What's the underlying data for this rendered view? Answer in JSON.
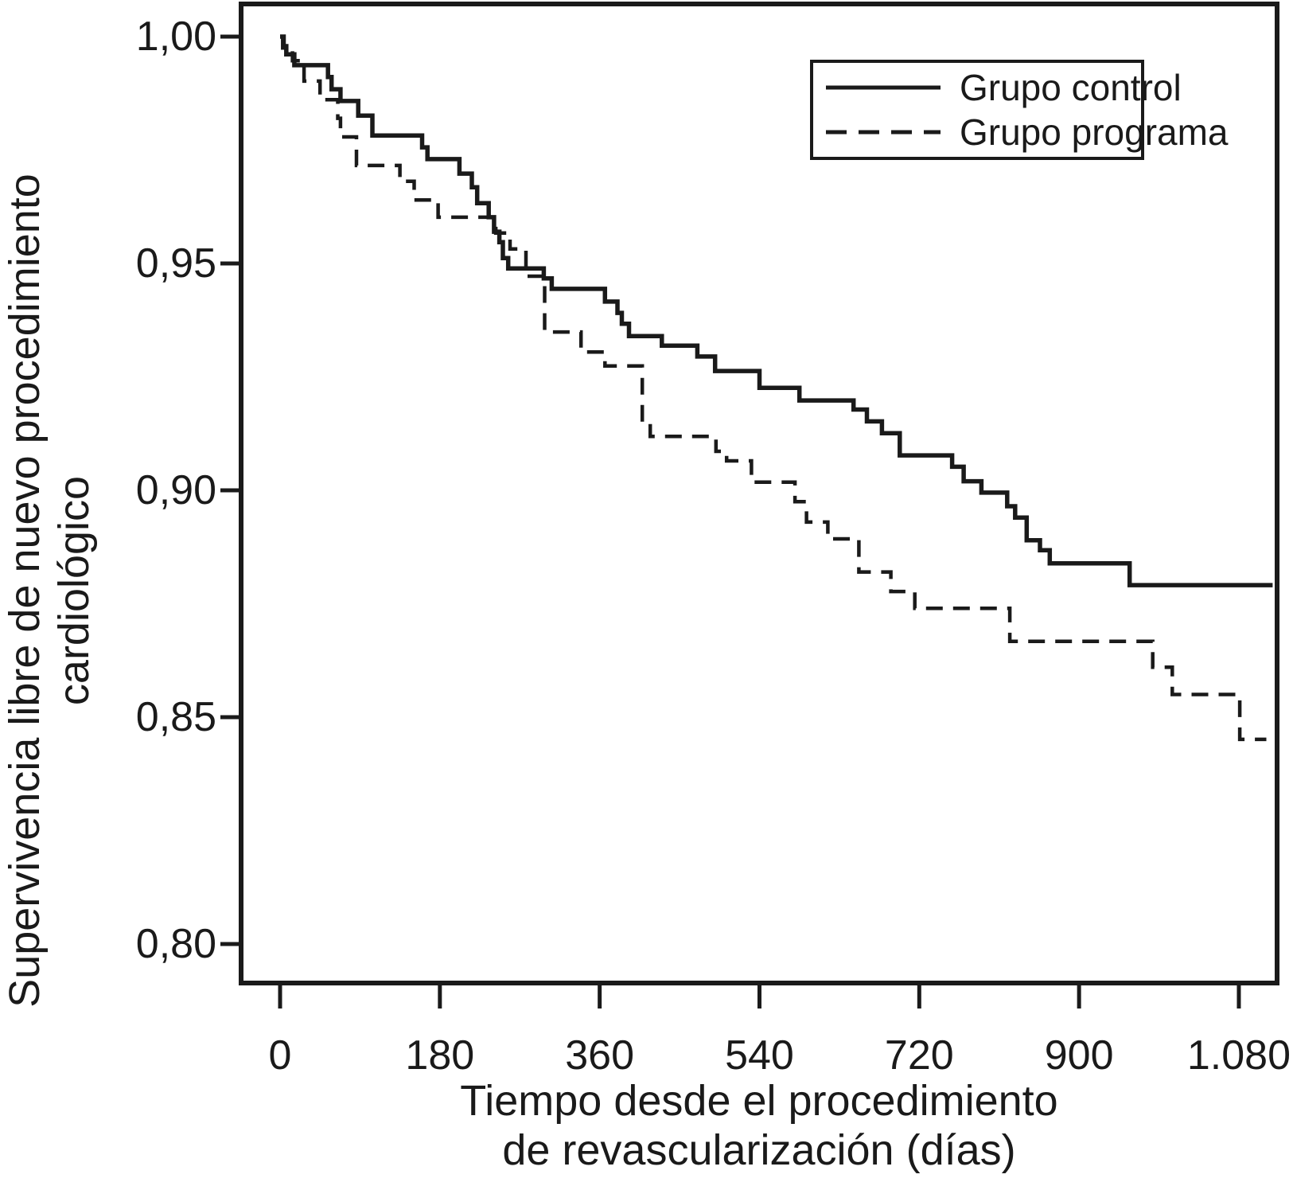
{
  "figure": {
    "background_color": "#ffffff",
    "line_color": "#1a1a1a"
  },
  "chart_data": {
    "type": "line",
    "subtype": "kaplan-meier-step-curves",
    "title": "",
    "xlabel_line1": "Tiempo desde el procedimiento",
    "xlabel_line2": "de  revascularización (días)",
    "ylabel_line1": "Supervivencia libre de nuevo procedimiento",
    "ylabel_line2": "cardiológico",
    "xlim": [
      -44,
      1123
    ],
    "ylim": [
      0.791,
      1.007
    ],
    "grid": false,
    "x_ticks": [
      {
        "value": 0,
        "label": "0"
      },
      {
        "value": 180,
        "label": "180"
      },
      {
        "value": 360,
        "label": "360"
      },
      {
        "value": 540,
        "label": "540"
      },
      {
        "value": 720,
        "label": "720"
      },
      {
        "value": 900,
        "label": "900"
      },
      {
        "value": 1080,
        "label": "1.080"
      }
    ],
    "y_ticks": [
      {
        "value": 1.0,
        "label": "1,00"
      },
      {
        "value": 0.95,
        "label": "0,95"
      },
      {
        "value": 0.9,
        "label": "0,90"
      },
      {
        "value": 0.85,
        "label": "0,85"
      },
      {
        "value": 0.8,
        "label": "0,80"
      }
    ],
    "legend": {
      "position": "top-right",
      "items": [
        {
          "label": "Grupo control",
          "style": "solid"
        },
        {
          "label": "Grupo programa",
          "style": "dashed"
        }
      ]
    },
    "series": [
      {
        "name": "Grupo control",
        "style": "solid",
        "flat_to": 1118,
        "points": [
          [
            0,
            1.0
          ],
          [
            4,
            0.9979
          ],
          [
            7,
            0.9961
          ],
          [
            16,
            0.9937
          ],
          [
            54,
            0.9911
          ],
          [
            58,
            0.9884
          ],
          [
            68,
            0.9858
          ],
          [
            88,
            0.9826
          ],
          [
            104,
            0.9782
          ],
          [
            160,
            0.9756
          ],
          [
            166,
            0.973
          ],
          [
            202,
            0.9698
          ],
          [
            216,
            0.9668
          ],
          [
            222,
            0.9633
          ],
          [
            235,
            0.9602
          ],
          [
            241,
            0.957
          ],
          [
            247,
            0.9547
          ],
          [
            251,
            0.9512
          ],
          [
            257,
            0.9489
          ],
          [
            297,
            0.9467
          ],
          [
            306,
            0.9444
          ],
          [
            366,
            0.9416
          ],
          [
            380,
            0.9391
          ],
          [
            385,
            0.9367
          ],
          [
            393,
            0.934
          ],
          [
            430,
            0.9319
          ],
          [
            470,
            0.9295
          ],
          [
            490,
            0.9263
          ],
          [
            540,
            0.9226
          ],
          [
            585,
            0.9198
          ],
          [
            646,
            0.9178
          ],
          [
            661,
            0.9152
          ],
          [
            678,
            0.9126
          ],
          [
            698,
            0.9077
          ],
          [
            757,
            0.9052
          ],
          [
            770,
            0.902
          ],
          [
            790,
            0.8995
          ],
          [
            819,
            0.8965
          ],
          [
            828,
            0.894
          ],
          [
            841,
            0.889
          ],
          [
            856,
            0.8868
          ],
          [
            867,
            0.8839
          ],
          [
            957,
            0.8791
          ]
        ]
      },
      {
        "name": "Grupo programa",
        "style": "dashed",
        "flat_to": 1111,
        "points": [
          [
            0,
            1.0
          ],
          [
            3,
            0.9975
          ],
          [
            14,
            0.9947
          ],
          [
            27,
            0.9902
          ],
          [
            45,
            0.9861
          ],
          [
            65,
            0.982
          ],
          [
            68,
            0.9779
          ],
          [
            86,
            0.9716
          ],
          [
            135,
            0.9681
          ],
          [
            151,
            0.964
          ],
          [
            178,
            0.9602
          ],
          [
            243,
            0.9567
          ],
          [
            259,
            0.9532
          ],
          [
            277,
            0.9472
          ],
          [
            298,
            0.9349
          ],
          [
            339,
            0.9305
          ],
          [
            366,
            0.9274
          ],
          [
            408,
            0.9151
          ],
          [
            417,
            0.9119
          ],
          [
            491,
            0.9086
          ],
          [
            503,
            0.9065
          ],
          [
            531,
            0.9018
          ],
          [
            580,
            0.8975
          ],
          [
            593,
            0.893
          ],
          [
            617,
            0.8893
          ],
          [
            652,
            0.882
          ],
          [
            688,
            0.8777
          ],
          [
            715,
            0.874
          ],
          [
            822,
            0.8667
          ],
          [
            983,
            0.861
          ],
          [
            1005,
            0.855
          ],
          [
            1081,
            0.8451
          ]
        ]
      }
    ]
  }
}
